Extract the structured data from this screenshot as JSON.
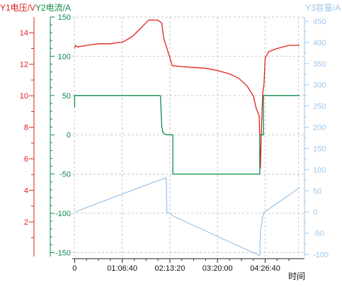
{
  "chart_data": {
    "type": "line",
    "legend": [
      {
        "label": "Y1电压/V",
        "color": "#e0201c"
      },
      {
        "label": "Y2电流/A",
        "color": "#0b8a4a"
      },
      {
        "label": "Y3容量/A",
        "color": "#9fc6ea"
      }
    ],
    "xlabel": "时间",
    "x_unit": "seconds",
    "x_ticks": [
      {
        "value": 0,
        "label": "0"
      },
      {
        "value": 4000,
        "label": "01:06:40"
      },
      {
        "value": 8000,
        "label": "02:13:20"
      },
      {
        "value": 12000,
        "label": "03:20:00"
      },
      {
        "value": 16000,
        "label": "04:26:40"
      }
    ],
    "xlim": [
      -200,
      19300
    ],
    "axes": {
      "y1": {
        "label": "Y1电压/V",
        "color": "#e0201c",
        "ylim": [
          -0.2,
          15.0
        ],
        "ticks": [
          2,
          4,
          6,
          8,
          10,
          12,
          14
        ]
      },
      "y2": {
        "label": "Y2电流/A",
        "color": "#0b8a4a",
        "ylim": [
          -155,
          150
        ],
        "ticks": [
          -150,
          -100,
          -50,
          0,
          50,
          100,
          150
        ]
      },
      "y3": {
        "label": "Y3容量/A",
        "color": "#9fc6ea",
        "ylim": [
          -105,
          460
        ],
        "ticks": [
          -100,
          -50,
          0,
          50,
          100,
          150,
          200,
          250,
          300,
          350,
          400,
          450
        ]
      }
    },
    "grid": true,
    "series": [
      {
        "name": "Y1电压/V",
        "axis": "y1",
        "color": "#e0201c",
        "x": [
          0,
          80,
          250,
          1000,
          2000,
          3000,
          3800,
          4000,
          4500,
          4900,
          5300,
          5700,
          6200,
          7000,
          7320,
          7420,
          7500,
          7800,
          8200,
          8250,
          8400,
          9000,
          10000,
          11000,
          12000,
          13000,
          13800,
          14500,
          15000,
          15250,
          15500,
          15600,
          15700,
          15800,
          15900,
          16000,
          16300,
          17000,
          17500,
          18000,
          18900
        ],
        "y": [
          13.0,
          13.2,
          13.1,
          13.2,
          13.3,
          13.3,
          13.4,
          13.4,
          13.6,
          13.8,
          14.1,
          14.4,
          14.8,
          14.8,
          14.6,
          14.0,
          13.6,
          12.9,
          11.9,
          11.9,
          11.9,
          11.85,
          11.8,
          11.75,
          11.6,
          11.4,
          11.1,
          10.6,
          10.0,
          9.2,
          8.7,
          5.4,
          8.2,
          10.2,
          10.7,
          12.4,
          12.8,
          13.0,
          13.1,
          13.2,
          13.2
        ]
      },
      {
        "name": "Y2电流/A",
        "axis": "y2",
        "color": "#0b8a4a",
        "x": [
          0,
          0,
          7200,
          7320,
          7420,
          7550,
          7800,
          8250,
          8250,
          15550,
          15550,
          15850,
          15850,
          18900
        ],
        "y": [
          35,
          50,
          50,
          10,
          3,
          1,
          0,
          0,
          -50,
          -50,
          0,
          0,
          50,
          50
        ]
      },
      {
        "name": "Y3容量/A",
        "axis": "y3",
        "color": "#9fc6ea",
        "x": [
          0,
          7380,
          7700,
          7750,
          8000,
          8300,
          15550,
          15600,
          15850,
          18900
        ],
        "y": [
          0,
          78,
          80,
          -2,
          -2,
          -10,
          -103,
          -45,
          -2,
          58
        ]
      }
    ]
  }
}
